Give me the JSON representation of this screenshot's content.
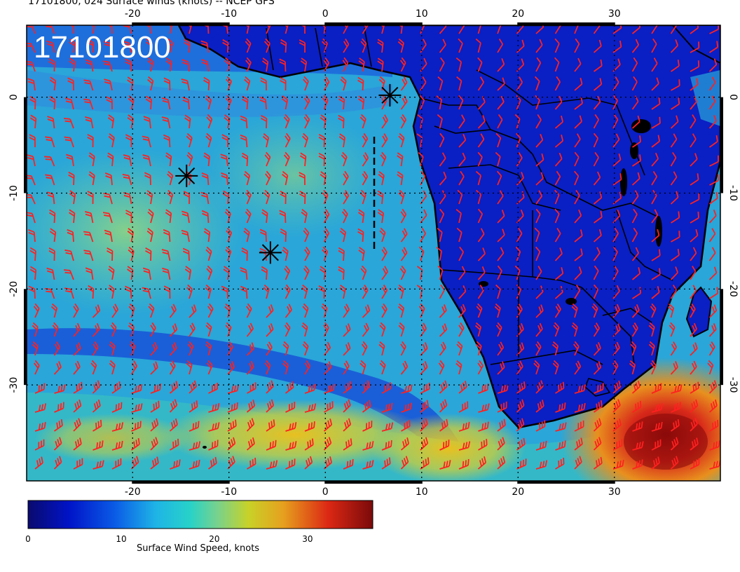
{
  "title": "17101800, 024 Surface winds (knots) -- NCEP GFS",
  "timestamp_label": "17101800",
  "colorbar": {
    "label": "Surface Wind Speed, knots",
    "ticks": [
      "0",
      "10",
      "20",
      "30"
    ],
    "min": 0,
    "max": 37,
    "colors": [
      "#0a0a6e",
      "#0014c8",
      "#0a5ae6",
      "#1eb4e6",
      "#28d2c8",
      "#78d28c",
      "#c8d228",
      "#e6a01e",
      "#dc2814",
      "#7a0a0a"
    ]
  },
  "axes": {
    "lon_ticks": [
      "-20",
      "-10",
      "0",
      "10",
      "20",
      "30"
    ],
    "lat_ticks": [
      "0",
      "-10",
      "-20",
      "-30"
    ],
    "lon_range": [
      -31,
      41
    ],
    "lat_range": [
      -40,
      7.5
    ],
    "grid": "dotted"
  },
  "markers": [
    {
      "symbol": "asterisk",
      "lon": 6.7,
      "lat": 0.2
    },
    {
      "symbol": "asterisk",
      "lon": -14.4,
      "lat": -8.2
    },
    {
      "symbol": "asterisk",
      "lon": -5.7,
      "lat": -16.2
    }
  ],
  "colors": {
    "barbs": "#ff2020",
    "coast": "#000000",
    "land": "#0a1fc4",
    "ocean": "#2aa6d8"
  }
}
